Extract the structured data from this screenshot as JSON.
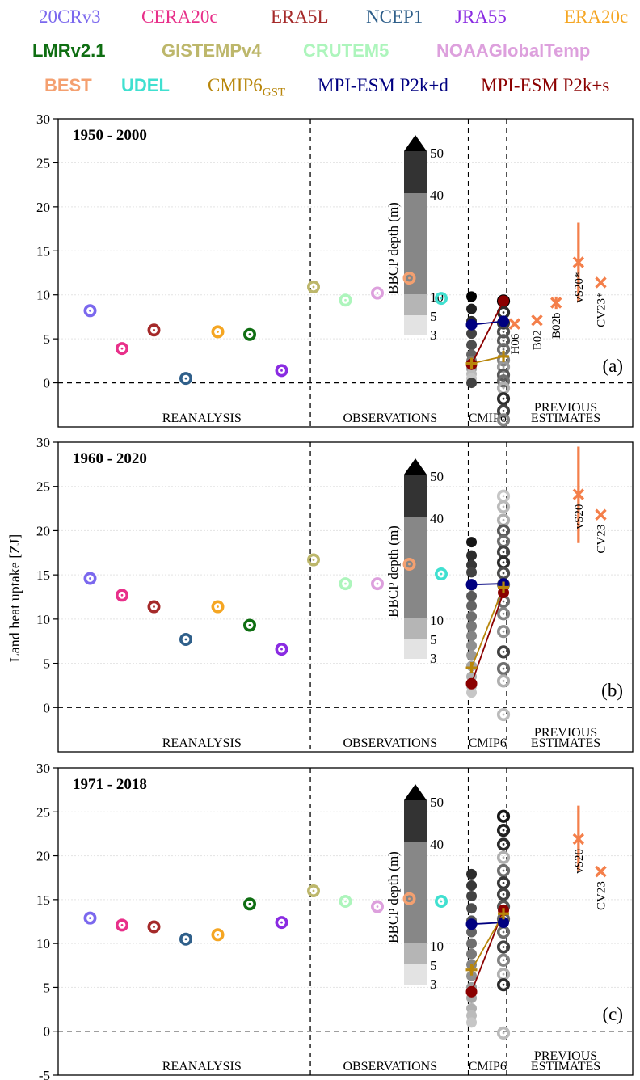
{
  "colors": {
    "20CRv3": "#7b68ee",
    "CERA20c": "#e8308a",
    "ERA5L": "#a52a2a",
    "NCEP1": "#2f5f8a",
    "JRA55": "#8a2be2",
    "ERA20c": "#f5a623",
    "LMRv2.1": "#0f6e12",
    "GISTEMPv4": "#bdb76b",
    "CRUTEM5": "#adf5bc",
    "NOAAGlobalTemp": "#dda0dd",
    "BEST": "#f4a070",
    "UDEL": "#40e0d0",
    "CMIP6GST": "#b8860b",
    "MPI-ESM P2k+d": "#000080",
    "MPI-ESM P2k+s": "#8b0000",
    "previous": "#f47f4a"
  },
  "legend": {
    "rows": [
      [
        {
          "key": "20CRv3",
          "label": "20CRv3",
          "style": "serif"
        },
        {
          "key": "CERA20c",
          "label": "CERA20c",
          "style": "serif"
        },
        {
          "key": "ERA5L",
          "label": "ERA5L",
          "style": "serif"
        },
        {
          "key": "NCEP1",
          "label": "NCEP1",
          "style": "serif"
        },
        {
          "key": "JRA55",
          "label": "JRA55",
          "style": "serif"
        },
        {
          "key": "ERA20c",
          "label": "ERA20c",
          "style": "serif"
        }
      ],
      [
        {
          "key": "LMRv2.1",
          "label": "LMRv2.1",
          "style": "bold"
        },
        {
          "key": "GISTEMPv4",
          "label": "GISTEMPv4",
          "style": "bold"
        },
        {
          "key": "CRUTEM5",
          "label": "CRUTEM5",
          "style": "bold"
        },
        {
          "key": "NOAAGlobalTemp",
          "label": "NOAAGlobalTemp",
          "style": "bold"
        }
      ],
      [
        {
          "key": "BEST",
          "label": "BEST",
          "style": "bold"
        },
        {
          "key": "UDEL",
          "label": "UDEL",
          "style": "bold"
        },
        {
          "key": "CMIP6GST",
          "label": "CMIP6",
          "sub": "GST",
          "style": "serif"
        },
        {
          "key": "MPI-ESM P2k+d",
          "label": "MPI-ESM P2k+d",
          "style": "serif"
        },
        {
          "key": "MPI-ESM P2k+s",
          "label": "MPI-ESM P2k+s",
          "style": "serif"
        }
      ]
    ]
  },
  "ylabel": "Land heat uptake [ZJ]",
  "group_labels": [
    "REANALYSIS",
    "OBSERVATIONS",
    "CMIP6",
    "PREVIOUS",
    "ESTIMATES"
  ],
  "colorbar": {
    "title": "BBCP depth (m)",
    "labels": [
      "50",
      "40",
      "10",
      "5",
      "3"
    ]
  },
  "chart_data": [
    {
      "type": "scatter",
      "title": "1950 - 2000",
      "panel_label": "(a)",
      "ylim": [
        -5,
        30
      ],
      "yticks": [
        0,
        5,
        10,
        15,
        20,
        25,
        30
      ],
      "reanalysis": [
        {
          "name": "20CRv3",
          "x": 1,
          "y": 8.2
        },
        {
          "name": "CERA20c",
          "x": 2,
          "y": 3.9
        },
        {
          "name": "ERA5L",
          "x": 3,
          "y": 6.0
        },
        {
          "name": "NCEP1",
          "x": 4,
          "y": 0.5
        },
        {
          "name": "ERA20c",
          "x": 5,
          "y": 5.8
        },
        {
          "name": "LMRv2.1",
          "x": 6,
          "y": 5.5
        },
        {
          "name": "JRA55",
          "x": 7,
          "y": 1.4
        }
      ],
      "observations": [
        {
          "name": "GISTEMPv4",
          "x": 8,
          "y": 10.9
        },
        {
          "name": "CRUTEM5",
          "x": 9,
          "y": 9.4
        },
        {
          "name": "NOAAGlobalTemp",
          "x": 10,
          "y": 10.2
        },
        {
          "name": "BEST",
          "x": 11,
          "y": 11.9
        },
        {
          "name": "UDEL",
          "x": 12,
          "y": 9.6
        }
      ],
      "cmip6_filled": [
        {
          "y": 9.8,
          "shade": 0.0
        },
        {
          "y": 8.4,
          "shade": 0.15
        },
        {
          "y": 7.0,
          "shade": 0.2
        },
        {
          "y": 5.6,
          "shade": 0.3
        },
        {
          "y": 4.3,
          "shade": 0.35
        },
        {
          "y": 3.2,
          "shade": 0.45
        },
        {
          "y": 2.5,
          "shade": 0.55
        },
        {
          "y": 1.6,
          "shade": 0.7
        },
        {
          "y": 1.0,
          "shade": 0.85
        },
        {
          "y": 0.5,
          "shade": 0.9
        },
        {
          "y": 0.0,
          "shade": 0.3
        }
      ],
      "cmip6_rings": [
        {
          "y": 9.3,
          "shade": 0.0
        },
        {
          "y": 8.0,
          "shade": 0.2
        },
        {
          "y": 6.8,
          "shade": 0.25
        },
        {
          "y": 5.8,
          "shade": 0.35
        },
        {
          "y": 4.8,
          "shade": 0.4
        },
        {
          "y": 3.8,
          "shade": 0.5
        },
        {
          "y": 2.6,
          "shade": 0.6
        },
        {
          "y": 1.8,
          "shade": 0.7
        },
        {
          "y": 0.9,
          "shade": 0.4
        },
        {
          "y": 0.2,
          "shade": 0.5
        },
        {
          "y": -0.6,
          "shade": 0.8
        },
        {
          "y": -1.8,
          "shade": 0.2
        },
        {
          "y": -3.2,
          "shade": 0.3
        },
        {
          "y": -4.2,
          "shade": 0.6
        }
      ],
      "cmip6_gst": [
        2.2,
        3.0
      ],
      "p2k_d": [
        6.6,
        7.0
      ],
      "p2k_s": [
        2.1,
        9.3
      ],
      "previous": [
        {
          "label": "H06",
          "x": 14.3,
          "y": 6.7
        },
        {
          "label": "B02",
          "x": 15.0,
          "y": 7.1
        },
        {
          "label": "B02b",
          "x": 15.6,
          "y": 9.1,
          "err": [
            8.4,
            9.8
          ]
        },
        {
          "label": "vS20*",
          "x": 16.3,
          "y": 13.7,
          "err": [
            9.2,
            18.2
          ]
        },
        {
          "label": "CV23*",
          "x": 17.0,
          "y": 11.4
        }
      ]
    },
    {
      "type": "scatter",
      "title": "1960 - 2020",
      "panel_label": "(b)",
      "ylim": [
        -5,
        30
      ],
      "yticks": [
        0,
        5,
        10,
        15,
        20,
        25,
        30
      ],
      "reanalysis": [
        {
          "name": "20CRv3",
          "x": 1,
          "y": 14.6
        },
        {
          "name": "CERA20c",
          "x": 2,
          "y": 12.7
        },
        {
          "name": "ERA5L",
          "x": 3,
          "y": 11.4
        },
        {
          "name": "NCEP1",
          "x": 4,
          "y": 7.7
        },
        {
          "name": "ERA20c",
          "x": 5,
          "y": 11.4
        },
        {
          "name": "LMRv2.1",
          "x": 6,
          "y": 9.3
        },
        {
          "name": "JRA55",
          "x": 7,
          "y": 6.6
        }
      ],
      "observations": [
        {
          "name": "GISTEMPv4",
          "x": 8,
          "y": 16.7
        },
        {
          "name": "CRUTEM5",
          "x": 9,
          "y": 14.0
        },
        {
          "name": "NOAAGlobalTemp",
          "x": 10,
          "y": 14.0
        },
        {
          "name": "BEST",
          "x": 11,
          "y": 16.2
        },
        {
          "name": "UDEL",
          "x": 12,
          "y": 15.1
        }
      ],
      "cmip6_filled": [
        {
          "y": 18.7,
          "shade": 0.1
        },
        {
          "y": 17.2,
          "shade": 0.2
        },
        {
          "y": 16.1,
          "shade": 0.25
        },
        {
          "y": 15.3,
          "shade": 0.3
        },
        {
          "y": 13.8,
          "shade": 0.35
        },
        {
          "y": 12.6,
          "shade": 0.4
        },
        {
          "y": 11.5,
          "shade": 0.45
        },
        {
          "y": 10.3,
          "shade": 0.5
        },
        {
          "y": 9.2,
          "shade": 0.55
        },
        {
          "y": 8.1,
          "shade": 0.6
        },
        {
          "y": 7.0,
          "shade": 0.65
        },
        {
          "y": 5.9,
          "shade": 0.7
        },
        {
          "y": 4.7,
          "shade": 0.75
        },
        {
          "y": 3.5,
          "shade": 0.8
        },
        {
          "y": 2.4,
          "shade": 0.85
        },
        {
          "y": 1.7,
          "shade": 0.9
        }
      ],
      "cmip6_rings": [
        {
          "y": 23.9,
          "shade": 0.9
        },
        {
          "y": 22.7,
          "shade": 0.85
        },
        {
          "y": 21.2,
          "shade": 0.8
        },
        {
          "y": 20.0,
          "shade": 0.4
        },
        {
          "y": 18.8,
          "shade": 0.5
        },
        {
          "y": 17.6,
          "shade": 0.3
        },
        {
          "y": 16.4,
          "shade": 0.2
        },
        {
          "y": 15.2,
          "shade": 0.35
        },
        {
          "y": 13.9,
          "shade": 0.45
        },
        {
          "y": 12.0,
          "shade": 0.5
        },
        {
          "y": 10.6,
          "shade": 0.6
        },
        {
          "y": 8.6,
          "shade": 0.65
        },
        {
          "y": 6.3,
          "shade": 0.3
        },
        {
          "y": 4.4,
          "shade": 0.5
        },
        {
          "y": 3.0,
          "shade": 0.8
        },
        {
          "y": -0.8,
          "shade": 0.85
        }
      ],
      "cmip6_gst": [
        4.5,
        13.6
      ],
      "p2k_d": [
        13.9,
        14.0
      ],
      "p2k_s": [
        2.7,
        13.0
      ],
      "previous": [
        {
          "label": "vS20",
          "x": 16.3,
          "y": 24.1,
          "err": [
            18.6,
            29.5
          ]
        },
        {
          "label": "CV23",
          "x": 17.0,
          "y": 21.8
        }
      ]
    },
    {
      "type": "scatter",
      "title": "1971 - 2018",
      "panel_label": "(c)",
      "ylim": [
        -5,
        30
      ],
      "yticks": [
        -5,
        0,
        5,
        10,
        15,
        20,
        25,
        30
      ],
      "reanalysis": [
        {
          "name": "20CRv3",
          "x": 1,
          "y": 12.9
        },
        {
          "name": "CERA20c",
          "x": 2,
          "y": 12.1
        },
        {
          "name": "ERA5L",
          "x": 3,
          "y": 11.9
        },
        {
          "name": "NCEP1",
          "x": 4,
          "y": 10.5
        },
        {
          "name": "ERA20c",
          "x": 5,
          "y": 11.0
        },
        {
          "name": "LMRv2.1",
          "x": 6,
          "y": 14.5
        },
        {
          "name": "JRA55",
          "x": 7,
          "y": 12.4
        }
      ],
      "observations": [
        {
          "name": "GISTEMPv4",
          "x": 8,
          "y": 16.0
        },
        {
          "name": "CRUTEM5",
          "x": 9,
          "y": 14.8
        },
        {
          "name": "NOAAGlobalTemp",
          "x": 10,
          "y": 14.2
        },
        {
          "name": "BEST",
          "x": 11,
          "y": 15.1
        },
        {
          "name": "UDEL",
          "x": 12,
          "y": 14.8
        }
      ],
      "cmip6_filled": [
        {
          "y": 17.9,
          "shade": 0.2
        },
        {
          "y": 16.6,
          "shade": 0.25
        },
        {
          "y": 15.4,
          "shade": 0.3
        },
        {
          "y": 14.0,
          "shade": 0.35
        },
        {
          "y": 12.6,
          "shade": 0.4
        },
        {
          "y": 11.3,
          "shade": 0.45
        },
        {
          "y": 10.0,
          "shade": 0.5
        },
        {
          "y": 8.8,
          "shade": 0.55
        },
        {
          "y": 7.6,
          "shade": 0.6
        },
        {
          "y": 6.3,
          "shade": 0.65
        },
        {
          "y": 5.0,
          "shade": 0.7
        },
        {
          "y": 3.8,
          "shade": 0.75
        },
        {
          "y": 2.6,
          "shade": 0.8
        },
        {
          "y": 1.8,
          "shade": 0.85
        },
        {
          "y": 1.0,
          "shade": 0.9
        }
      ],
      "cmip6_rings": [
        {
          "y": 24.5,
          "shade": 0.1
        },
        {
          "y": 22.9,
          "shade": 0.15
        },
        {
          "y": 21.3,
          "shade": 0.2
        },
        {
          "y": 19.8,
          "shade": 0.8
        },
        {
          "y": 18.3,
          "shade": 0.5
        },
        {
          "y": 16.9,
          "shade": 0.25
        },
        {
          "y": 15.6,
          "shade": 0.3
        },
        {
          "y": 14.2,
          "shade": 0.4
        },
        {
          "y": 12.8,
          "shade": 0.45
        },
        {
          "y": 11.3,
          "shade": 0.5
        },
        {
          "y": 9.6,
          "shade": 0.3
        },
        {
          "y": 8.1,
          "shade": 0.6
        },
        {
          "y": 6.5,
          "shade": 0.8
        },
        {
          "y": 5.3,
          "shade": 0.2
        },
        {
          "y": -0.2,
          "shade": 0.85
        }
      ],
      "cmip6_gst": [
        7.0,
        13.4
      ],
      "p2k_d": [
        12.2,
        12.4
      ],
      "p2k_s": [
        4.5,
        13.8
      ],
      "previous": [
        {
          "label": "vS20",
          "x": 16.3,
          "y": 21.9,
          "err": [
            18.3,
            25.7
          ]
        },
        {
          "label": "CV23",
          "x": 17.0,
          "y": 18.2
        }
      ]
    }
  ]
}
